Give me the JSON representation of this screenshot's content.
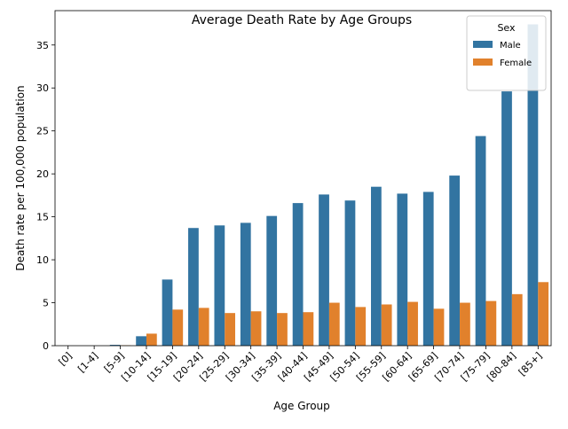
{
  "chart_data": {
    "type": "bar",
    "title": "Average Death Rate by Age Groups",
    "xlabel": "Age Group",
    "ylabel": "Death rate per 100,000 population",
    "categories": [
      "[0]",
      "[1-4]",
      "[5-9]",
      "[10-14]",
      "[15-19]",
      "[20-24]",
      "[25-29]",
      "[30-34]",
      "[35-39]",
      "[40-44]",
      "[45-49]",
      "[50-54]",
      "[55-59]",
      "[60-64]",
      "[65-69]",
      "[70-74]",
      "[75-79]",
      "[80-84]",
      "[85+]"
    ],
    "series": [
      {
        "name": "Male",
        "color": "#3274a1",
        "values": [
          0.0,
          0.0,
          0.1,
          1.1,
          7.7,
          13.7,
          14.0,
          14.3,
          15.1,
          16.6,
          17.6,
          16.9,
          18.5,
          17.7,
          17.9,
          19.8,
          24.4,
          29.6,
          37.4
        ]
      },
      {
        "name": "Female",
        "color": "#e1812c",
        "values": [
          0.0,
          0.0,
          0.05,
          1.4,
          4.2,
          4.4,
          3.8,
          4.0,
          3.8,
          3.9,
          5.0,
          4.5,
          4.8,
          5.1,
          4.3,
          5.0,
          5.2,
          6.0,
          7.4
        ]
      }
    ],
    "ylim": [
      0,
      39
    ],
    "yticks": [
      0,
      5,
      10,
      15,
      20,
      25,
      30,
      35
    ],
    "grid": false,
    "legend": {
      "title": "Sex",
      "placement": "top-right"
    }
  }
}
